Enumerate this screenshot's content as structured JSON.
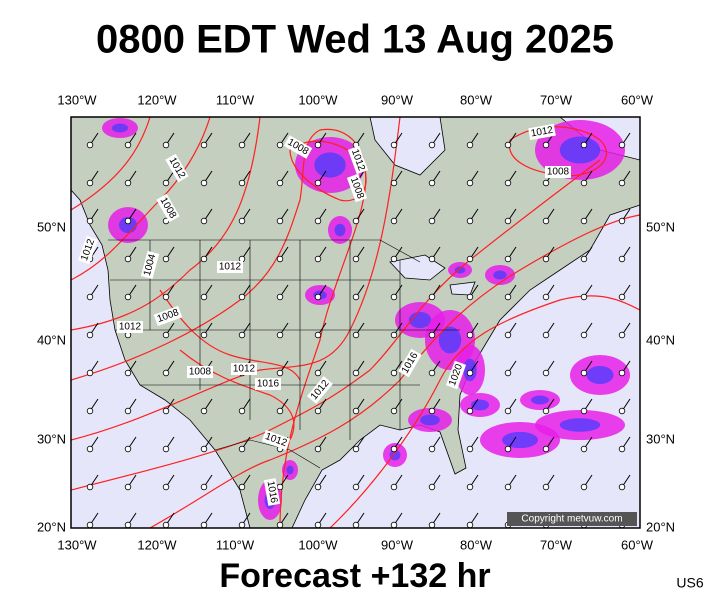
{
  "header": {
    "title": "0800 EDT Wed 13 Aug 2025"
  },
  "lon_labels": [
    "130°W",
    "120°W",
    "110°W",
    "100°W",
    "90°W",
    "80°W",
    "70°W",
    "60°W"
  ],
  "lat_labels": [
    "50°N",
    "40°N",
    "30°N",
    "20°N"
  ],
  "isobar_labels": [
    "1008",
    "1012",
    "1008",
    "1012",
    "1008",
    "1012",
    "1008",
    "1012",
    "1004",
    "1012",
    "1012",
    "1008",
    "1008",
    "1012",
    "1016",
    "1012",
    "1016",
    "1020",
    "1012",
    "1016"
  ],
  "copyright": "Copyright metvuw.com",
  "footer": {
    "forecast": "Forecast +132 hr",
    "region": "US6"
  }
}
